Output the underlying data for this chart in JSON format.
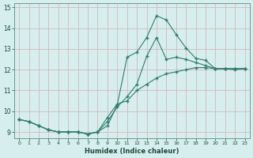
{
  "xlabel": "Humidex (Indice chaleur)",
  "background_color": "#d6eeee",
  "grid_color": "#c8dede",
  "line_color": "#2e7d6e",
  "xlim": [
    -0.5,
    23.5
  ],
  "ylim": [
    8.7,
    15.2
  ],
  "xticks": [
    0,
    1,
    2,
    3,
    4,
    5,
    6,
    7,
    8,
    9,
    10,
    11,
    12,
    13,
    14,
    15,
    16,
    17,
    18,
    19,
    20,
    21,
    22,
    23
  ],
  "yticks": [
    9,
    10,
    11,
    12,
    13,
    14,
    15
  ],
  "series": [
    {
      "x": [
        0,
        1,
        2,
        3,
        4,
        5,
        6,
        7,
        8,
        9,
        10,
        11,
        12,
        13,
        14,
        15,
        16,
        17,
        18,
        19,
        20,
        21,
        22,
        23
      ],
      "y": [
        9.6,
        9.5,
        9.3,
        9.1,
        9.0,
        9.0,
        9.0,
        8.9,
        9.0,
        9.3,
        10.3,
        12.6,
        12.85,
        13.55,
        14.6,
        14.4,
        13.7,
        13.05,
        12.55,
        12.45,
        12.05,
        12.05,
        12.0,
        12.05
      ]
    },
    {
      "x": [
        0,
        1,
        2,
        3,
        4,
        5,
        6,
        7,
        8,
        9,
        10,
        11,
        12,
        13,
        14,
        15,
        16,
        17,
        18,
        19,
        20,
        21,
        22,
        23
      ],
      "y": [
        9.6,
        9.5,
        9.3,
        9.1,
        9.0,
        9.0,
        9.0,
        8.9,
        9.0,
        9.5,
        10.2,
        10.7,
        11.3,
        12.65,
        13.55,
        12.5,
        12.6,
        12.5,
        12.35,
        12.2,
        12.05,
        12.05,
        12.05,
        12.05
      ]
    },
    {
      "x": [
        0,
        1,
        2,
        3,
        4,
        5,
        6,
        7,
        8,
        9,
        10,
        11,
        12,
        13,
        14,
        15,
        16,
        17,
        18,
        19,
        20,
        21,
        22,
        23
      ],
      "y": [
        9.6,
        9.5,
        9.3,
        9.1,
        9.0,
        9.0,
        9.0,
        8.9,
        9.0,
        9.7,
        10.35,
        10.5,
        11.0,
        11.3,
        11.6,
        11.8,
        11.9,
        12.0,
        12.1,
        12.1,
        12.05,
        12.05,
        12.05,
        12.05
      ]
    }
  ]
}
